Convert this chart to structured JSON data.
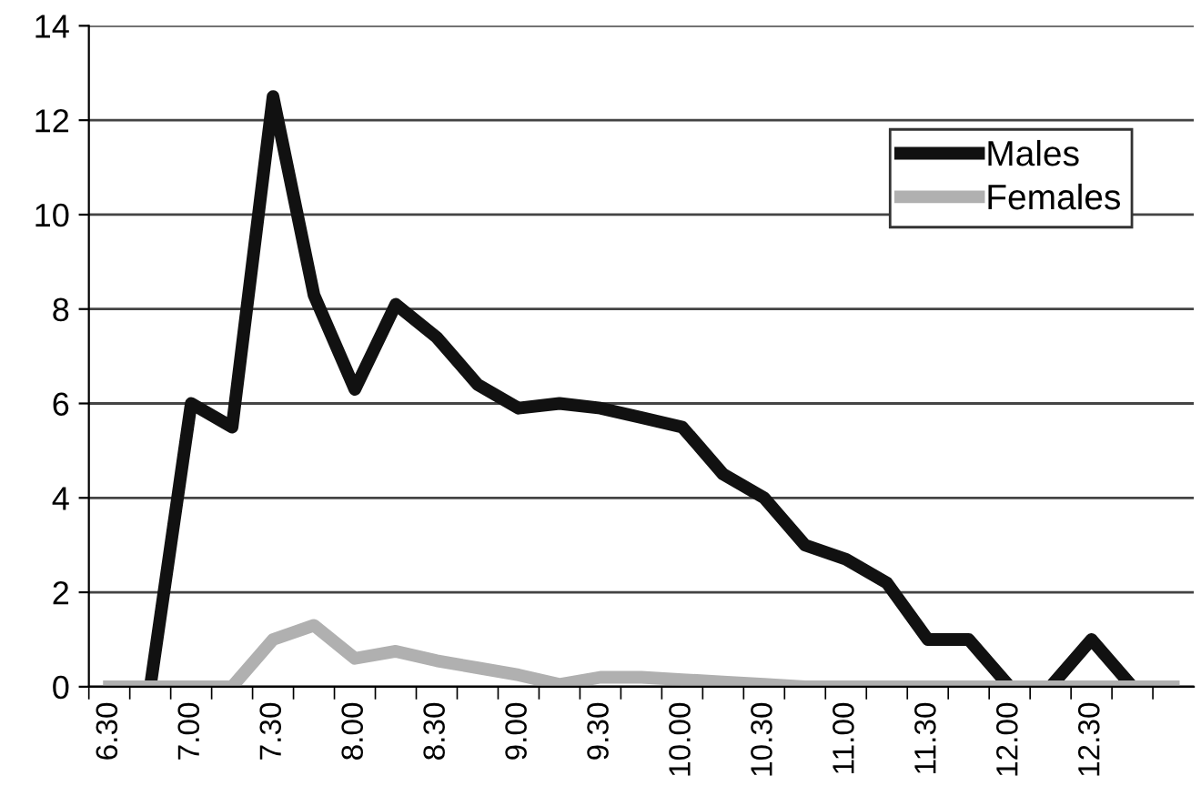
{
  "chart_data": {
    "type": "line",
    "categories": [
      "6.30",
      null,
      "7.00",
      null,
      "7.30",
      null,
      "8.00",
      null,
      "8.30",
      null,
      "9.00",
      null,
      "9.30",
      null,
      "10.00",
      null,
      "10.30",
      null,
      "11.00",
      null,
      "11.30",
      null,
      "12.00",
      null,
      "12.30",
      null,
      null
    ],
    "series": [
      {
        "name": "Males",
        "color": "#111111",
        "values": [
          null,
          0,
          6.0,
          5.5,
          12.5,
          8.3,
          6.3,
          8.1,
          7.4,
          6.4,
          5.9,
          6.0,
          5.9,
          5.7,
          5.5,
          4.5,
          4.0,
          3.0,
          2.7,
          2.2,
          1.0,
          1.0,
          0,
          0,
          1.0,
          0,
          null
        ]
      },
      {
        "name": "Females",
        "color": "#b0b0b0",
        "values": [
          0,
          0,
          0,
          0,
          1.0,
          1.3,
          0.6,
          0.75,
          0.55,
          0.4,
          0.25,
          0.05,
          0.2,
          0.2,
          0.15,
          0.1,
          0.05,
          0,
          0,
          0,
          0,
          0,
          0,
          0,
          0,
          0,
          0
        ]
      }
    ],
    "ylim": [
      0,
      14
    ],
    "yticks": [
      0,
      2,
      4,
      6,
      8,
      10,
      12,
      14
    ],
    "grid": "y",
    "legend": "top right",
    "marker": "none",
    "line_style": "solid"
  }
}
